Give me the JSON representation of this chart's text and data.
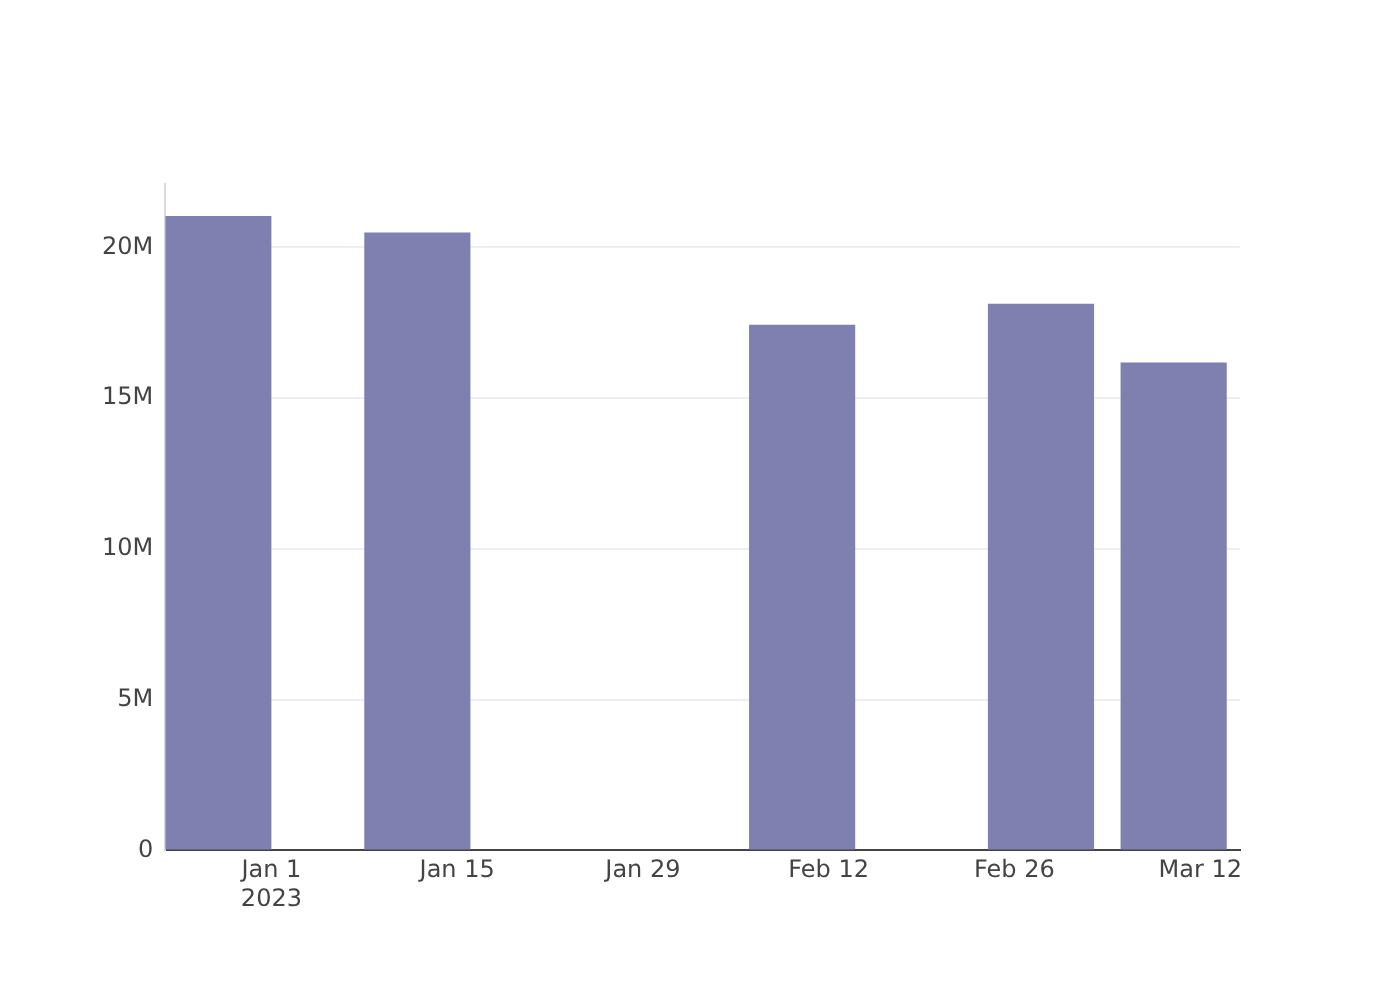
{
  "chart_data": {
    "type": "bar",
    "x": [
      "2022-12-28",
      "2023-01-12",
      "2023-02-10",
      "2023-02-28",
      "2023-03-10"
    ],
    "values": [
      21040000,
      20490000,
      17430000,
      18130000,
      16180000
    ],
    "color": "#7f7fb0",
    "xlim": [
      "2022-12-24",
      "2023-03-15"
    ],
    "xticks": [
      {
        "value": "2023-01-01",
        "label": "Jan 1\n2023"
      },
      {
        "value": "2023-01-15",
        "label": "Jan 15"
      },
      {
        "value": "2023-01-29",
        "label": "Jan 29"
      },
      {
        "value": "2023-02-12",
        "label": "Feb 12"
      },
      {
        "value": "2023-02-26",
        "label": "Feb 26"
      },
      {
        "value": "2023-03-12",
        "label": "Mar 12"
      }
    ],
    "ylim": [
      0,
      22100000
    ],
    "yticks": [
      {
        "value": 0,
        "label": "0"
      },
      {
        "value": 5000000,
        "label": "5M"
      },
      {
        "value": 10000000,
        "label": "10M"
      },
      {
        "value": 15000000,
        "label": "15M"
      },
      {
        "value": 20000000,
        "label": "20M"
      }
    ],
    "grid": "y",
    "legend": false
  }
}
